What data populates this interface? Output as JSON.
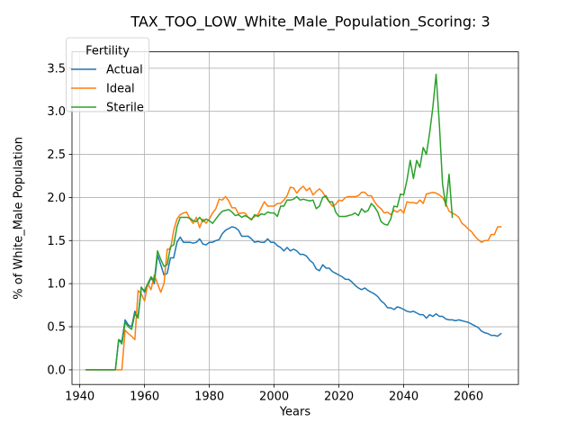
{
  "chart_data": {
    "type": "line",
    "title": "TAX_TOO_LOW_White_Male_Population_Scoring: 3",
    "xlabel": "Years",
    "ylabel": "% of White_Male Population",
    "xlim": [
      1937.6,
      2075.4
    ],
    "ylim": [
      -0.17,
      3.69
    ],
    "xticks": [
      1940,
      1960,
      1980,
      2000,
      2020,
      2040,
      2060
    ],
    "yticks": [
      0.0,
      0.5,
      1.0,
      1.5,
      2.0,
      2.5,
      3.0,
      3.5
    ],
    "ytick_labels": [
      "0.0",
      "0.5",
      "1.0",
      "1.5",
      "2.0",
      "2.5",
      "3.0",
      "3.5"
    ],
    "grid": true,
    "legend": {
      "title": "Fertility",
      "placement": "top-left"
    },
    "series": [
      {
        "name": "Actual",
        "color": "#1f77b4",
        "x": [
          1942,
          1944,
          1946,
          1948,
          1950,
          1951,
          1952,
          1953,
          1954,
          1955,
          1956,
          1957,
          1958,
          1959,
          1960,
          1961,
          1962,
          1963,
          1964,
          1965,
          1966,
          1967,
          1968,
          1969,
          1970,
          1971,
          1972,
          1973,
          1974,
          1975,
          1976,
          1977,
          1978,
          1979,
          1980,
          1981,
          1982,
          1983,
          1984,
          1985,
          1986,
          1987,
          1988,
          1989,
          1990,
          1991,
          1992,
          1993,
          1994,
          1995,
          1996,
          1997,
          1998,
          1999,
          2000,
          2001,
          2002,
          2003,
          2004,
          2005,
          2006,
          2007,
          2008,
          2009,
          2010,
          2011,
          2012,
          2013,
          2014,
          2015,
          2016,
          2017,
          2018,
          2019,
          2020,
          2021,
          2022,
          2023,
          2024,
          2025,
          2026,
          2027,
          2028,
          2029,
          2030,
          2031,
          2032,
          2033,
          2034,
          2035,
          2036,
          2037,
          2038,
          2039,
          2040,
          2041,
          2042,
          2043,
          2044,
          2045,
          2046,
          2047,
          2048,
          2049,
          2050,
          2051,
          2052,
          2053,
          2054,
          2055,
          2056,
          2057,
          2058,
          2059,
          2060,
          2061,
          2062,
          2063,
          2064,
          2065,
          2066,
          2067,
          2068,
          2069,
          2070
        ],
        "y": [
          0.0,
          0.0,
          0.0,
          0.0,
          0.0,
          0.0,
          0.35,
          0.33,
          0.58,
          0.52,
          0.5,
          0.68,
          0.62,
          0.96,
          0.9,
          0.98,
          1.07,
          1.0,
          1.33,
          1.22,
          1.1,
          1.12,
          1.3,
          1.3,
          1.48,
          1.54,
          1.48,
          1.48,
          1.48,
          1.47,
          1.48,
          1.52,
          1.46,
          1.45,
          1.48,
          1.48,
          1.5,
          1.51,
          1.58,
          1.62,
          1.64,
          1.66,
          1.65,
          1.62,
          1.55,
          1.55,
          1.55,
          1.52,
          1.48,
          1.49,
          1.48,
          1.48,
          1.52,
          1.48,
          1.48,
          1.44,
          1.42,
          1.38,
          1.42,
          1.38,
          1.4,
          1.38,
          1.34,
          1.34,
          1.32,
          1.27,
          1.24,
          1.17,
          1.15,
          1.22,
          1.18,
          1.18,
          1.14,
          1.12,
          1.1,
          1.08,
          1.05,
          1.05,
          1.02,
          0.98,
          0.95,
          0.93,
          0.95,
          0.92,
          0.9,
          0.88,
          0.85,
          0.8,
          0.77,
          0.72,
          0.72,
          0.7,
          0.73,
          0.72,
          0.7,
          0.68,
          0.67,
          0.68,
          0.66,
          0.64,
          0.64,
          0.6,
          0.64,
          0.62,
          0.65,
          0.62,
          0.62,
          0.59,
          0.58,
          0.58,
          0.57,
          0.58,
          0.57,
          0.56,
          0.55,
          0.53,
          0.51,
          0.49,
          0.45,
          0.43,
          0.42,
          0.4,
          0.4,
          0.39,
          0.42
        ]
      },
      {
        "name": "Ideal",
        "color": "#ff7f0e",
        "x": [
          1942,
          1944,
          1946,
          1948,
          1950,
          1951,
          1952,
          1953,
          1954,
          1955,
          1956,
          1957,
          1958,
          1959,
          1960,
          1961,
          1962,
          1963,
          1964,
          1965,
          1966,
          1967,
          1968,
          1969,
          1970,
          1971,
          1972,
          1973,
          1974,
          1975,
          1976,
          1977,
          1978,
          1979,
          1980,
          1981,
          1982,
          1983,
          1984,
          1985,
          1986,
          1987,
          1988,
          1989,
          1990,
          1991,
          1992,
          1993,
          1994,
          1995,
          1996,
          1997,
          1998,
          1999,
          2000,
          2001,
          2002,
          2003,
          2004,
          2005,
          2006,
          2007,
          2008,
          2009,
          2010,
          2011,
          2012,
          2013,
          2014,
          2015,
          2016,
          2017,
          2018,
          2019,
          2020,
          2021,
          2022,
          2023,
          2024,
          2025,
          2026,
          2027,
          2028,
          2029,
          2030,
          2031,
          2032,
          2033,
          2034,
          2035,
          2036,
          2037,
          2038,
          2039,
          2040,
          2041,
          2042,
          2043,
          2044,
          2045,
          2046,
          2047,
          2048,
          2049,
          2050,
          2051,
          2052,
          2053,
          2054,
          2055,
          2056,
          2057,
          2058,
          2059,
          2060,
          2061,
          2062,
          2063,
          2064,
          2065,
          2066,
          2067,
          2068,
          2069,
          2070
        ],
        "y": [
          0.0,
          0.0,
          0.0,
          0.0,
          0.0,
          0.0,
          0.0,
          0.0,
          0.46,
          0.42,
          0.39,
          0.35,
          0.92,
          0.88,
          0.8,
          1.0,
          0.93,
          1.1,
          1.0,
          0.9,
          1.0,
          1.4,
          1.4,
          1.62,
          1.75,
          1.8,
          1.82,
          1.83,
          1.75,
          1.7,
          1.77,
          1.65,
          1.75,
          1.7,
          1.75,
          1.82,
          1.87,
          1.98,
          1.97,
          2.01,
          1.96,
          1.88,
          1.88,
          1.81,
          1.82,
          1.82,
          1.77,
          1.75,
          1.78,
          1.8,
          1.88,
          1.95,
          1.9,
          1.9,
          1.9,
          1.93,
          1.93,
          1.97,
          2.02,
          2.12,
          2.11,
          2.05,
          2.1,
          2.13,
          2.08,
          2.11,
          2.03,
          2.07,
          2.1,
          2.06,
          2.0,
          1.95,
          1.9,
          1.92,
          1.97,
          1.96,
          2.0,
          2.01,
          2.01,
          2.01,
          2.02,
          2.06,
          2.06,
          2.02,
          2.02,
          1.95,
          1.9,
          1.87,
          1.82,
          1.83,
          1.8,
          1.85,
          1.83,
          1.86,
          1.82,
          1.95,
          1.94,
          1.94,
          1.93,
          1.97,
          1.93,
          2.04,
          2.05,
          2.06,
          2.05,
          2.03,
          2.0,
          1.93,
          1.84,
          1.82,
          1.8,
          1.77,
          1.7,
          1.67,
          1.63,
          1.6,
          1.55,
          1.51,
          1.48,
          1.5,
          1.5,
          1.57,
          1.57,
          1.66,
          1.66
        ]
      },
      {
        "name": "Sterile",
        "color": "#2ca02c",
        "x": [
          1942,
          1944,
          1946,
          1948,
          1950,
          1951,
          1952,
          1953,
          1954,
          1955,
          1956,
          1957,
          1958,
          1959,
          1960,
          1961,
          1962,
          1963,
          1964,
          1965,
          1966,
          1967,
          1968,
          1969,
          1970,
          1971,
          1972,
          1973,
          1974,
          1975,
          1976,
          1977,
          1978,
          1979,
          1980,
          1981,
          1982,
          1983,
          1984,
          1985,
          1986,
          1987,
          1988,
          1989,
          1990,
          1991,
          1992,
          1993,
          1994,
          1995,
          1996,
          1997,
          1998,
          1999,
          2000,
          2001,
          2002,
          2003,
          2004,
          2005,
          2006,
          2007,
          2008,
          2009,
          2010,
          2011,
          2012,
          2013,
          2014,
          2015,
          2016,
          2017,
          2018,
          2019,
          2020,
          2021,
          2022,
          2023,
          2024,
          2025,
          2026,
          2027,
          2028,
          2029,
          2030,
          2031,
          2032,
          2033,
          2034,
          2035,
          2036,
          2037,
          2038,
          2039,
          2040,
          2041,
          2042,
          2043,
          2044,
          2045,
          2046,
          2047,
          2048,
          2049,
          2050,
          2051,
          2052,
          2053,
          2054,
          2055
        ],
        "y": [
          0.0,
          0.0,
          0.0,
          0.0,
          0.0,
          0.0,
          0.35,
          0.3,
          0.55,
          0.5,
          0.47,
          0.65,
          0.6,
          0.95,
          0.92,
          1.0,
          1.08,
          1.03,
          1.38,
          1.28,
          1.2,
          1.22,
          1.43,
          1.45,
          1.66,
          1.77,
          1.77,
          1.77,
          1.76,
          1.73,
          1.72,
          1.77,
          1.72,
          1.75,
          1.73,
          1.7,
          1.75,
          1.8,
          1.84,
          1.85,
          1.86,
          1.83,
          1.79,
          1.8,
          1.77,
          1.79,
          1.77,
          1.74,
          1.8,
          1.78,
          1.81,
          1.8,
          1.83,
          1.82,
          1.82,
          1.78,
          1.9,
          1.9,
          1.97,
          1.97,
          1.98,
          2.01,
          1.97,
          1.98,
          1.97,
          1.96,
          1.97,
          1.87,
          1.9,
          2.0,
          2.02,
          1.95,
          1.95,
          1.83,
          1.78,
          1.78,
          1.78,
          1.79,
          1.8,
          1.82,
          1.79,
          1.87,
          1.83,
          1.85,
          1.93,
          1.89,
          1.83,
          1.72,
          1.69,
          1.68,
          1.75,
          1.9,
          1.89,
          2.04,
          2.03,
          2.2,
          2.43,
          2.22,
          2.43,
          2.35,
          2.58,
          2.5,
          2.75,
          3.05,
          3.43,
          2.85,
          2.15,
          1.9,
          2.27,
          1.77
        ]
      }
    ]
  }
}
